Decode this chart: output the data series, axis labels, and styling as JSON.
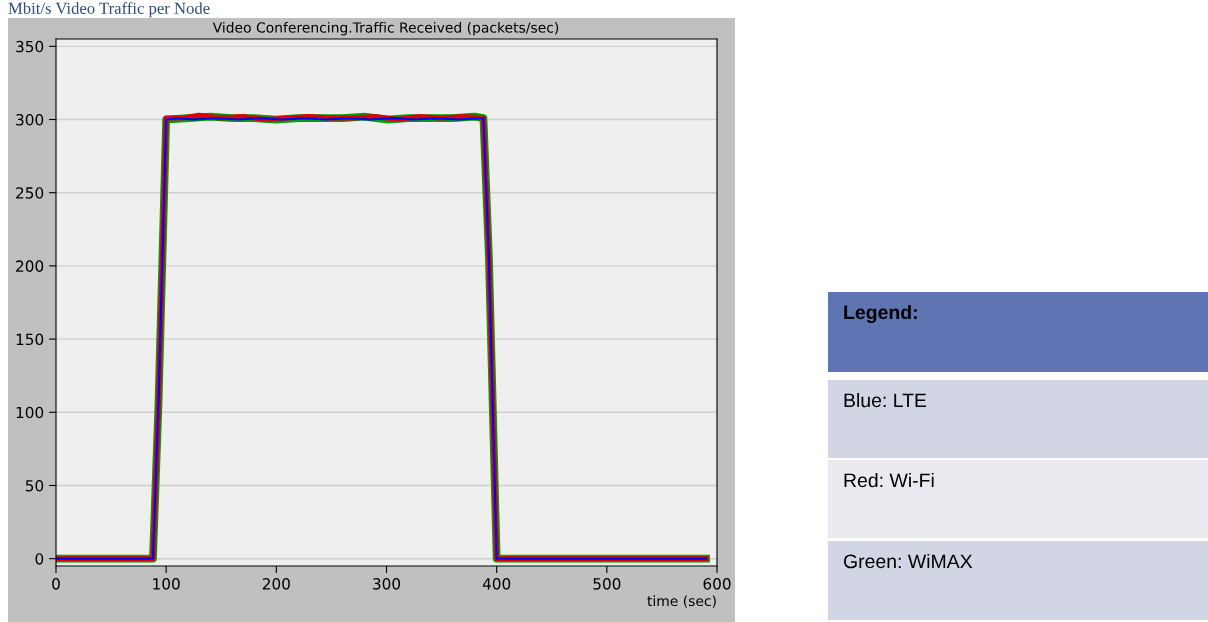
{
  "chart_data": {
    "type": "line",
    "title": "Mbit/s Video Traffic per Node",
    "subtitle": "Video Conferencing.Traffic Received (packets/sec)",
    "xlabel": "time (sec)",
    "xlim": [
      0,
      600
    ],
    "xticks": [
      0,
      100,
      200,
      300,
      400,
      500,
      600
    ],
    "ylim": [
      -5,
      355
    ],
    "yticks": [
      0,
      50,
      100,
      150,
      200,
      250,
      300,
      350
    ],
    "grid": "y",
    "line_style": "solid",
    "marker": "none",
    "annotations": [
      "Legend:",
      "Blue: LTE",
      "Red: Wi-Fi",
      "Green: WiMAX"
    ],
    "series": [
      {
        "color": "#00a000",
        "x": [
          0,
          88,
          93,
          100,
          120,
          140,
          160,
          180,
          200,
          220,
          240,
          260,
          280,
          300,
          320,
          340,
          360,
          380,
          388,
          393,
          400,
          590
        ],
        "values": [
          0,
          0,
          105,
          300,
          301,
          302,
          301,
          301,
          300,
          301,
          301,
          301,
          302,
          300,
          301,
          301,
          301,
          302,
          301,
          205,
          0,
          0
        ]
      },
      {
        "color": "#e00000",
        "x": [
          0,
          88,
          93,
          100,
          115,
          130,
          150,
          170,
          190,
          210,
          230,
          250,
          270,
          290,
          310,
          330,
          350,
          370,
          388,
          393,
          400,
          590
        ],
        "values": [
          0,
          0,
          105,
          301,
          301,
          303,
          301,
          302,
          300,
          301,
          302,
          301,
          301,
          302,
          300,
          302,
          301,
          302,
          301,
          205,
          0,
          0
        ]
      },
      {
        "color": "#0000ff",
        "x": [
          0,
          88,
          93,
          100,
          110,
          125,
          145,
          165,
          185,
          205,
          225,
          245,
          265,
          285,
          305,
          325,
          345,
          365,
          385,
          388,
          393,
          400,
          590
        ],
        "values": [
          0,
          0,
          105,
          300,
          301,
          300,
          301,
          300,
          301,
          300,
          301,
          300,
          301,
          300,
          301,
          300,
          301,
          300,
          301,
          301,
          205,
          0,
          0
        ]
      }
    ]
  }
}
